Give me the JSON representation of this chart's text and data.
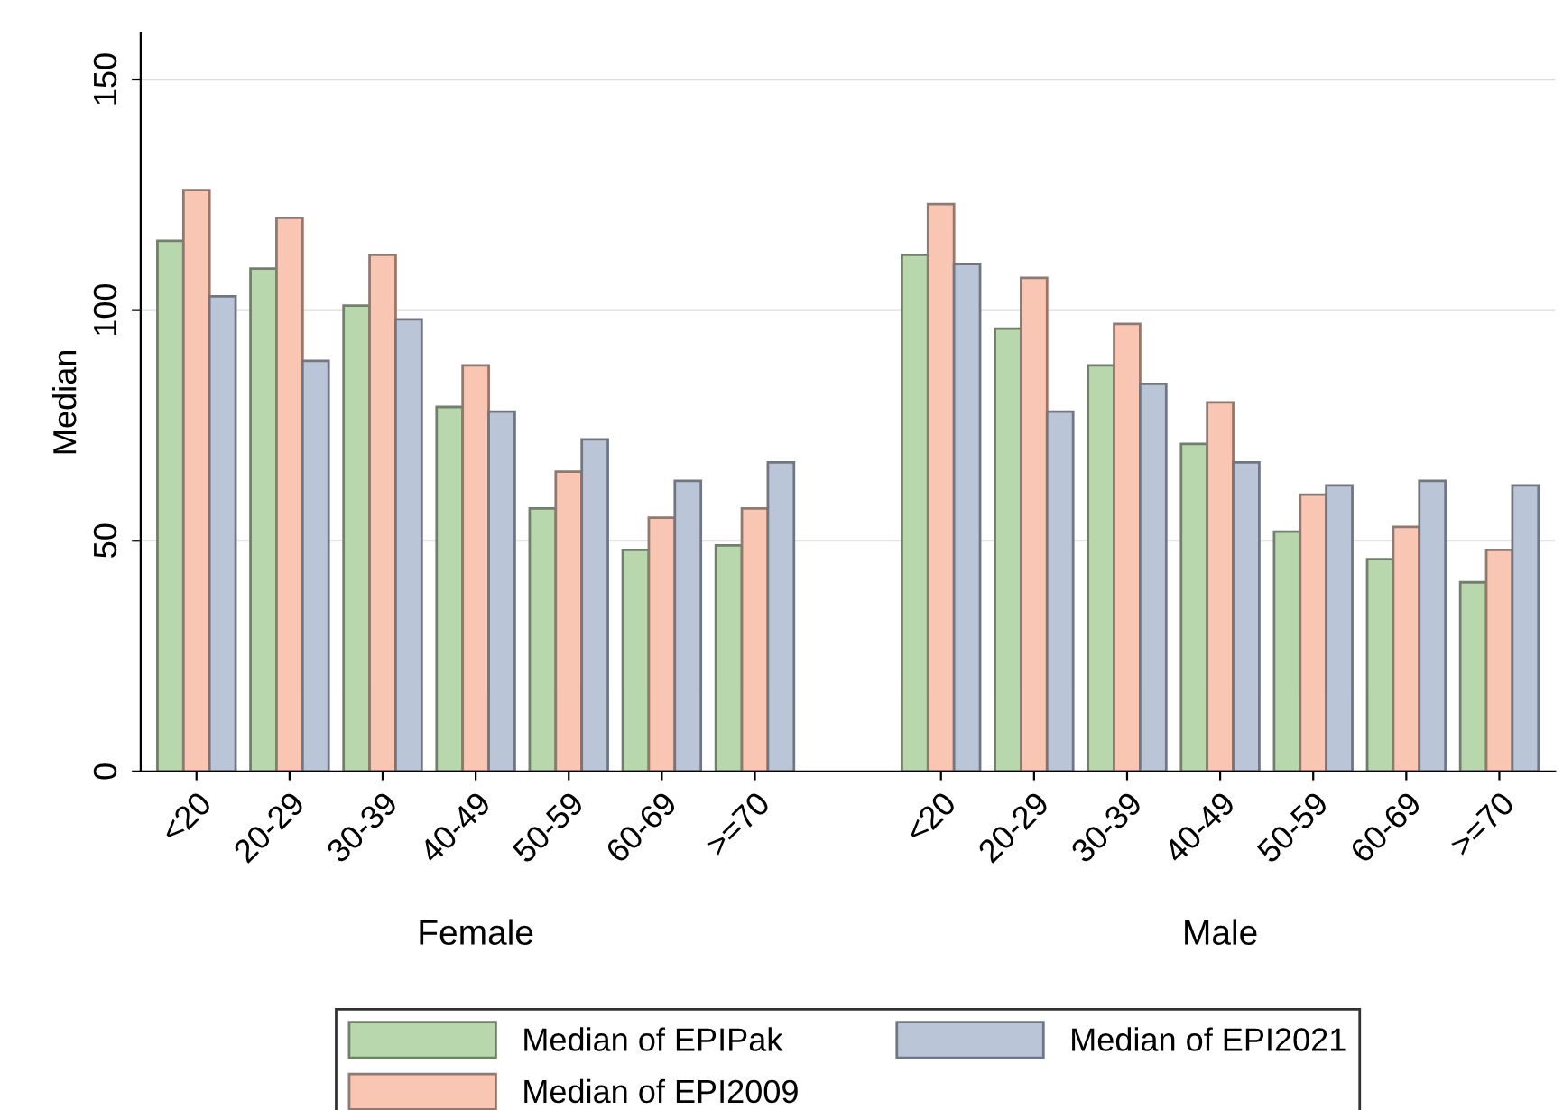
{
  "chart_data": {
    "type": "bar",
    "ylabel": "Median",
    "categories": [
      "<20",
      "20-29",
      "30-39",
      "40-49",
      "50-59",
      "60-69",
      ">=70",
      null,
      "<20",
      "20-29",
      "30-39",
      "40-49",
      "50-59",
      "60-69",
      ">=70"
    ],
    "series": [
      {
        "name": "Median of EPIPak",
        "color": "#b9d7ac",
        "values": [
          115,
          109,
          101,
          79,
          57,
          48,
          49,
          null,
          112,
          96,
          88,
          71,
          52,
          46,
          41
        ]
      },
      {
        "name": "Median of EPI2009",
        "color": "#f9c6b3",
        "values": [
          126,
          120,
          112,
          88,
          65,
          55,
          57,
          null,
          123,
          107,
          97,
          80,
          60,
          53,
          48
        ]
      },
      {
        "name": "Median of EPI2021",
        "color": "#bac6d8",
        "values": [
          103,
          89,
          98,
          78,
          72,
          63,
          67,
          null,
          110,
          78,
          84,
          67,
          62,
          63,
          62
        ]
      }
    ],
    "ylim": [
      0,
      160
    ],
    "yticks": [
      0,
      50,
      100,
      150
    ],
    "annotations": [
      "Female",
      "Male"
    ],
    "grid": "y",
    "legend": "bottom"
  }
}
